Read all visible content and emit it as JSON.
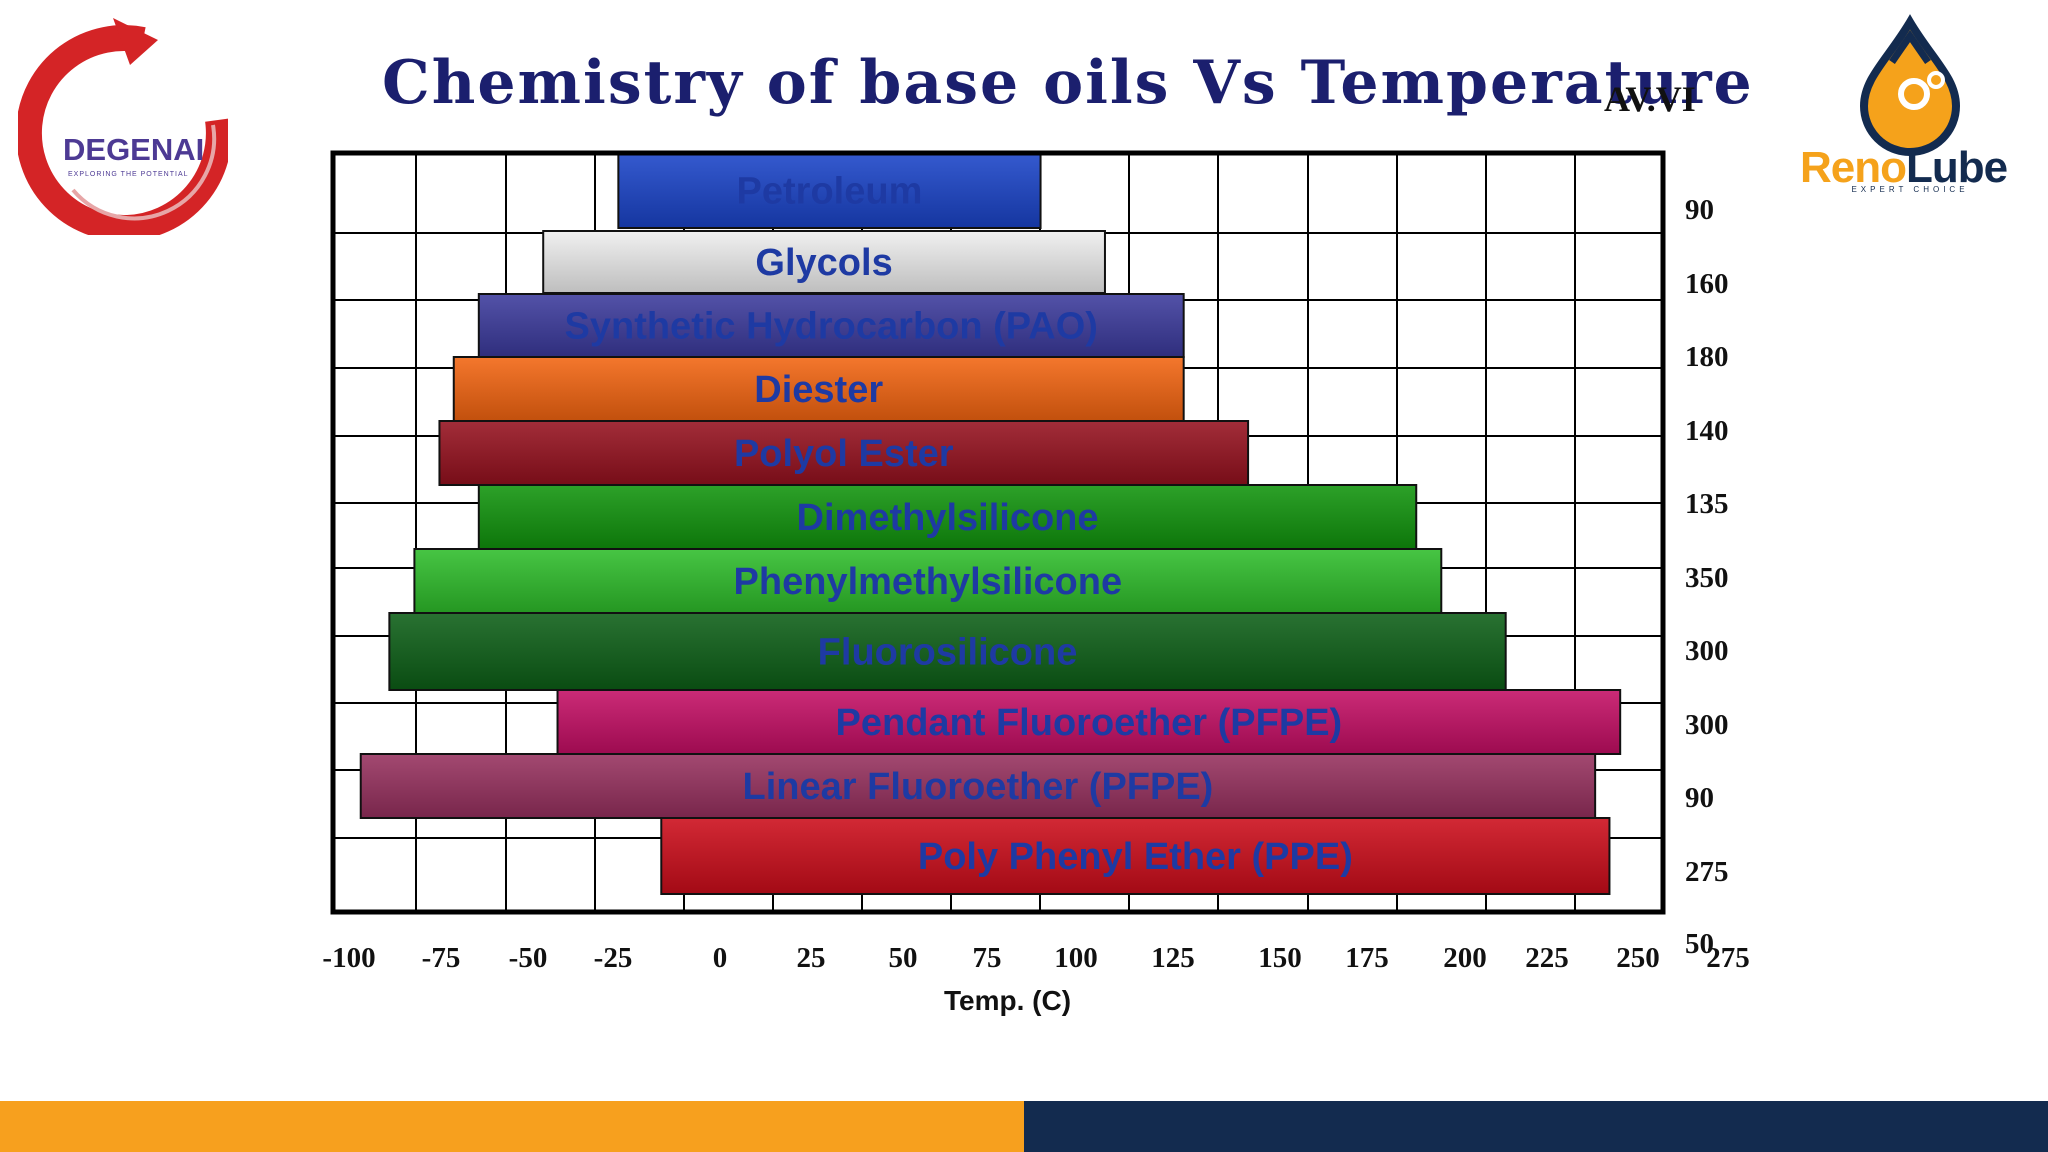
{
  "header": {
    "title": "Chemistry of base oils Vs Temperature",
    "code": "AV.VI"
  },
  "logos": {
    "left": {
      "name": "DEGENAI",
      "tagline": "EXPLORING THE POTENTIAL"
    },
    "right": {
      "name_part1": "Reno",
      "name_part2": "Lube",
      "tagline": "EXPERT CHOICE"
    }
  },
  "chart_data": {
    "type": "bar",
    "orientation": "horizontal-range",
    "xlabel": "Temp. (C)",
    "xticks": [
      "-100",
      "-75",
      "-50",
      "-25",
      "0",
      "25",
      "50",
      "75",
      "100",
      "125",
      "150",
      "175",
      "200",
      "225",
      "250",
      "275"
    ],
    "right_values": [
      "90",
      "160",
      "180",
      "140",
      "135",
      "350",
      "300",
      "300",
      "90",
      "275",
      "50"
    ],
    "grid": true,
    "series": [
      {
        "label": "Petroleum",
        "min": -25,
        "max": 93,
        "color": "#1a44c8"
      },
      {
        "label": "Glycols",
        "min": -46,
        "max": 111,
        "color": "#eeeeee"
      },
      {
        "label": "Synthetic Hydrocarbon (PAO)",
        "min": -64,
        "max": 133,
        "color": "#3b3a9c"
      },
      {
        "label": "Diester",
        "min": -71,
        "max": 133,
        "color": "#f26410"
      },
      {
        "label": "Polyol Ester",
        "min": -75,
        "max": 151,
        "color": "#95101e"
      },
      {
        "label": "Dimethylsilicone",
        "min": -64,
        "max": 198,
        "color": "#10940c"
      },
      {
        "label": "Phenylmethylsilicone",
        "min": -82,
        "max": 205,
        "color": "#2ebd2a"
      },
      {
        "label": "Fluorosilicone",
        "min": -89,
        "max": 223,
        "color": "#0c5f16"
      },
      {
        "label": "Pendant Fluoroether (PFPE)",
        "min": -42,
        "max": 255,
        "color": "#c40e64"
      },
      {
        "label": "Linear Fluoroether (PFPE)",
        "min": -97,
        "max": 248,
        "color": "#96305e"
      },
      {
        "label": "Poly Phenyl Ether (PPE)",
        "min": -13,
        "max": 252,
        "color": "#cc0c1a"
      }
    ]
  }
}
